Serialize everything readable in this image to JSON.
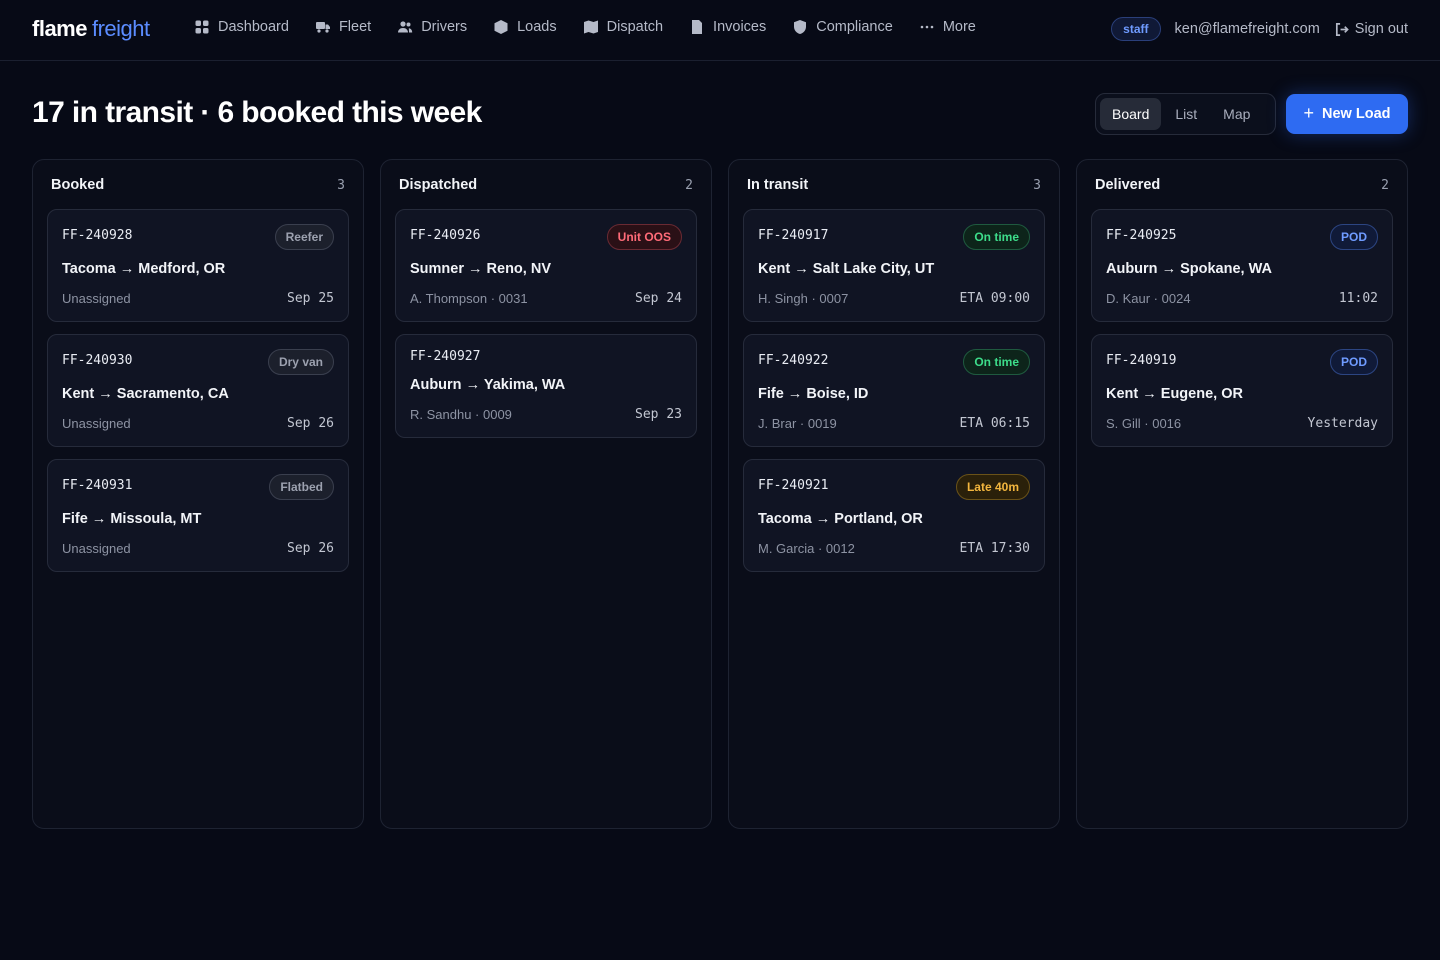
{
  "brand": {
    "word1": "flame",
    "word2": "freight"
  },
  "nav": {
    "items": [
      {
        "label": "Dashboard",
        "icon": "dashboard-icon"
      },
      {
        "label": "Fleet",
        "icon": "truck-icon"
      },
      {
        "label": "Drivers",
        "icon": "users-icon"
      },
      {
        "label": "Loads",
        "icon": "box-icon"
      },
      {
        "label": "Dispatch",
        "icon": "map-icon"
      },
      {
        "label": "Invoices",
        "icon": "document-icon"
      },
      {
        "label": "Compliance",
        "icon": "shield-icon"
      },
      {
        "label": "More",
        "icon": "ellipsis-icon"
      }
    ],
    "role_badge": "staff",
    "user_email": "ken@flamefreight.com",
    "sign_out": "Sign out"
  },
  "header": {
    "headline": "17 in transit · 6 booked this week",
    "views": [
      "Board",
      "List",
      "Map"
    ],
    "active_view": "Board",
    "new_button": "New Load"
  },
  "columns": [
    {
      "title": "Booked",
      "count": "3",
      "cards": [
        {
          "id": "FF-240928",
          "badge": "Reefer",
          "badge_kind": "neutral",
          "route": "Tacoma → Medford, OR",
          "meta": "Unassigned",
          "when": "Sep 25"
        },
        {
          "id": "FF-240930",
          "badge": "Dry van",
          "badge_kind": "neutral",
          "route": "Kent → Sacramento, CA",
          "meta": "Unassigned",
          "when": "Sep 26"
        },
        {
          "id": "FF-240931",
          "badge": "Flatbed",
          "badge_kind": "neutral",
          "route": "Fife → Missoula, MT",
          "meta": "Unassigned",
          "when": "Sep 26"
        }
      ]
    },
    {
      "title": "Dispatched",
      "count": "2",
      "cards": [
        {
          "id": "FF-240926",
          "badge": "Unit OOS",
          "badge_kind": "danger",
          "route": "Sumner → Reno, NV",
          "meta": "A. Thompson · 0031",
          "when": "Sep 24"
        },
        {
          "id": "FF-240927",
          "badge": "",
          "badge_kind": "",
          "route": "Auburn → Yakima, WA",
          "meta": "R. Sandhu · 0009",
          "when": "Sep 23"
        }
      ]
    },
    {
      "title": "In transit",
      "count": "3",
      "cards": [
        {
          "id": "FF-240917",
          "badge": "On time",
          "badge_kind": "success",
          "route": "Kent → Salt Lake City, UT",
          "meta": "H. Singh · 0007",
          "when": "ETA 09:00"
        },
        {
          "id": "FF-240922",
          "badge": "On time",
          "badge_kind": "success",
          "route": "Fife → Boise, ID",
          "meta": "J. Brar · 0019",
          "when": "ETA 06:15"
        },
        {
          "id": "FF-240921",
          "badge": "Late 40m",
          "badge_kind": "warn",
          "route": "Tacoma → Portland, OR",
          "meta": "M. Garcia · 0012",
          "when": "ETA 17:30"
        }
      ]
    },
    {
      "title": "Delivered",
      "count": "2",
      "cards": [
        {
          "id": "FF-240925",
          "badge": "POD",
          "badge_kind": "info",
          "route": "Auburn → Spokane, WA",
          "meta": "D. Kaur · 0024",
          "when": "11:02"
        },
        {
          "id": "FF-240919",
          "badge": "POD",
          "badge_kind": "info",
          "route": "Kent → Eugene, OR",
          "meta": "S. Gill · 0016",
          "when": "Yesterday"
        }
      ]
    }
  ]
}
